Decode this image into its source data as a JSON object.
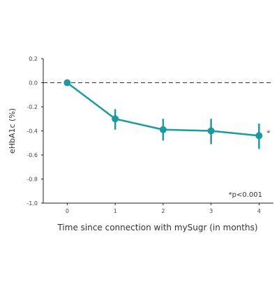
{
  "colors": {
    "series": "#1b9aa0",
    "axis": "#222222",
    "reference_line": "#333333",
    "text": "#333333"
  },
  "chart_data": {
    "type": "line",
    "title": "",
    "xlabel": "Time since connection with mySugr (in months)",
    "ylabel": "eHbA1c (%)",
    "x": [
      0,
      1,
      2,
      3,
      4
    ],
    "x_tick_labels": [
      "0",
      "1",
      "2",
      "3",
      "4"
    ],
    "xlim": [
      -0.5,
      4.3
    ],
    "ylim": [
      -1.0,
      0.2
    ],
    "y_ticks": [
      0.2,
      0.0,
      -0.2,
      -0.4,
      -0.6,
      -0.8,
      -1.0
    ],
    "y_tick_labels": [
      "0.2",
      "0.0",
      "-0.2",
      "-0.4",
      "-0.6",
      "-0.8",
      "-1.0"
    ],
    "grid": false,
    "reference_line": {
      "y": 0.0,
      "style": "dashed"
    },
    "series": [
      {
        "values": [
          0.0,
          -0.3,
          -0.39,
          -0.4,
          -0.44
        ],
        "error_low": [
          0.0,
          -0.39,
          -0.48,
          -0.51,
          -0.55
        ],
        "error_high": [
          0.0,
          -0.22,
          -0.3,
          -0.3,
          -0.34
        ]
      }
    ],
    "annotations": {
      "significance_marker": "*",
      "significance_marker_at_x": 4,
      "footnote": "*p<0.001"
    }
  }
}
